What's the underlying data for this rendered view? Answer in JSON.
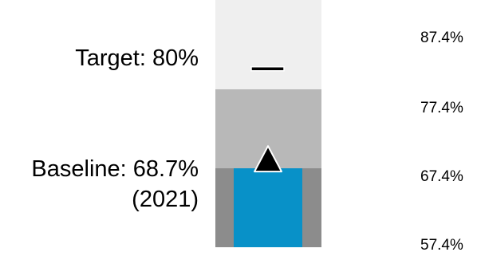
{
  "chart_data": {
    "type": "bullet",
    "scale_min": 57.4,
    "scale_max": 92.4,
    "ticks": [
      {
        "value": 87.4,
        "label": "87.4%"
      },
      {
        "value": 77.4,
        "label": "77.4%"
      },
      {
        "value": 67.4,
        "label": "67.4%"
      },
      {
        "value": 57.4,
        "label": "57.4%"
      }
    ],
    "ranges": [
      {
        "from": 57.4,
        "to": 67.4,
        "color": "#8c8c8c"
      },
      {
        "from": 67.4,
        "to": 77.4,
        "color": "#b8b8b8"
      },
      {
        "from": 77.4,
        "to": 92.4,
        "color": "#efefef"
      }
    ],
    "bar": {
      "value": 67.4,
      "color": "#0891c8"
    },
    "baseline": {
      "value": 68.7,
      "label_line1": "Baseline: 68.7%",
      "label_line2": "(2021)"
    },
    "target": {
      "value": 80,
      "label": "Target: 80%"
    },
    "top_limit": {
      "value": 92.4
    }
  }
}
